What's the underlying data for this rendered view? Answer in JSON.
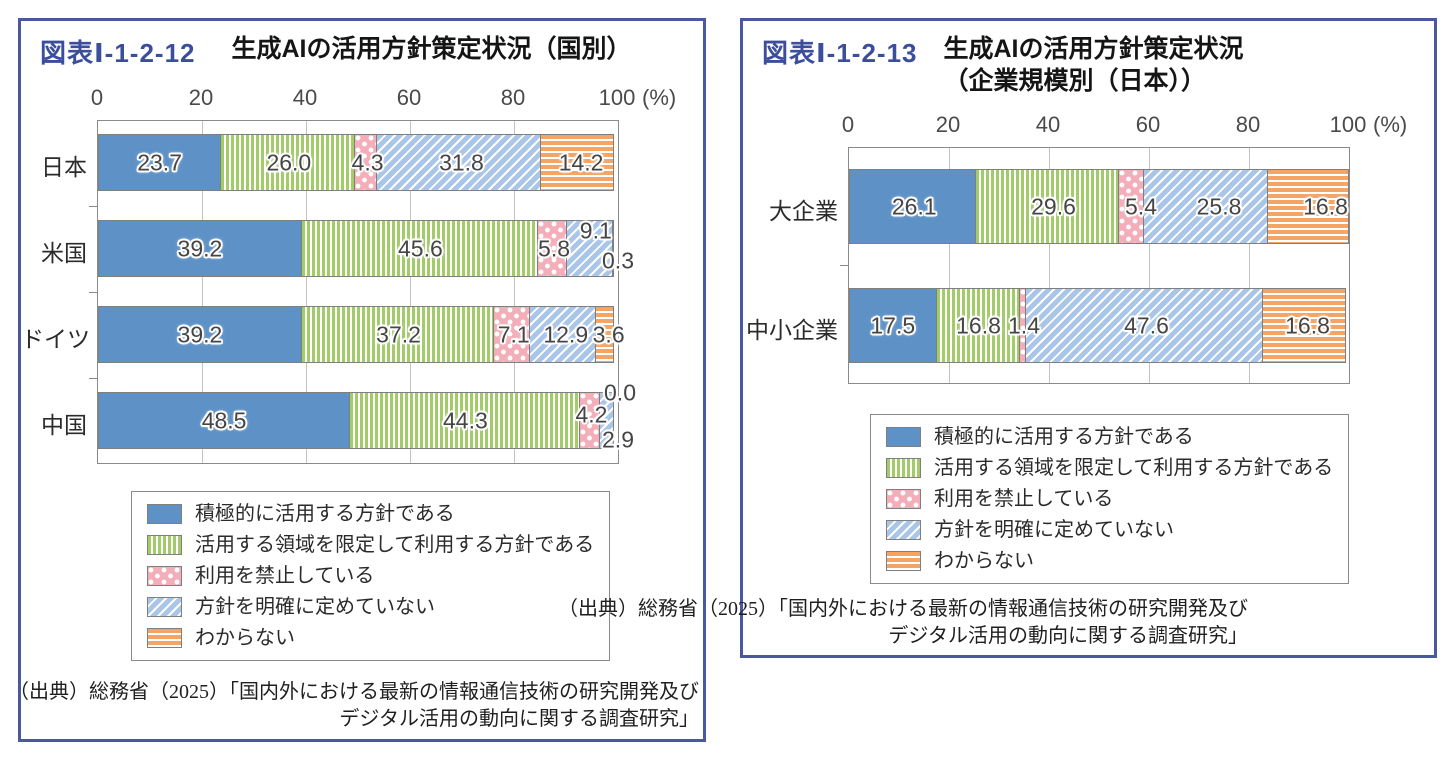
{
  "styles": {
    "panel_border_color": "#4a58a0",
    "figure_label_color": "#3b4e9c",
    "grid_color": "#c2c2c2",
    "bar_border_color": "#7f7f7f",
    "value_label_color": "#454545",
    "series_colors": {
      "solid": "#5e92c7",
      "vertical_stripes": "#a2cb6a",
      "dots": "#f4aeb9",
      "diagonal_stripes": "#a9c5e8",
      "horizontal_stripes": "#f4a465"
    }
  },
  "chart_data": [
    {
      "type": "bar",
      "stacked": true,
      "orientation": "horizontal",
      "figure_label": "図表Ⅰ-1-2-12",
      "title_lines": [
        "生成AIの活用方針策定状況（国別）"
      ],
      "categories": [
        "日本",
        "米国",
        "ドイツ",
        "中国"
      ],
      "series": [
        {
          "name": "積極的に活用する方針である",
          "pattern": "solid",
          "values": [
            23.7,
            39.2,
            39.2,
            48.5
          ],
          "value_labels": [
            "23.7",
            "39.2",
            "39.2",
            "48.5"
          ]
        },
        {
          "name": "活用する領域を限定して利用する方針である",
          "pattern": "vertical_stripes",
          "values": [
            26.0,
            45.6,
            37.2,
            44.3
          ],
          "value_labels": [
            "26.0",
            "45.6",
            "37.2",
            "44.3"
          ]
        },
        {
          "name": "利用を禁止している",
          "pattern": "dots",
          "values": [
            4.3,
            5.8,
            7.1,
            4.2
          ],
          "value_labels": [
            "4.3",
            "5.8",
            "7.1",
            "4.2"
          ]
        },
        {
          "name": "方針を明確に定めていない",
          "pattern": "diagonal_stripes",
          "values": [
            31.8,
            9.1,
            12.9,
            2.9
          ],
          "value_labels": [
            "31.8",
            "9.1",
            "12.9",
            "2.9"
          ]
        },
        {
          "name": "わからない",
          "pattern": "horizontal_stripes",
          "values": [
            14.2,
            0.3,
            3.6,
            0.0
          ],
          "value_labels": [
            "14.2",
            "0.3",
            "3.6",
            "0.0"
          ]
        }
      ],
      "xlim": [
        0,
        100
      ],
      "x_ticks": [
        "0",
        "20",
        "40",
        "60",
        "80",
        "100"
      ],
      "x_unit": "(%)",
      "grid": true,
      "legend_position": "below",
      "source_lines": [
        "（出典）総務省（2025）「国内外における最新の情報通信技術の研究開発及び",
        "デジタル活用の動向に関する調査研究」"
      ]
    },
    {
      "type": "bar",
      "stacked": true,
      "orientation": "horizontal",
      "figure_label": "図表Ⅰ-1-2-13",
      "title_lines": [
        "生成AIの活用方針策定状況",
        "（企業規模別（日本））"
      ],
      "categories": [
        "大企業",
        "中小企業"
      ],
      "series": [
        {
          "name": "積極的に活用する方針である",
          "pattern": "solid",
          "values": [
            26.1,
            17.5
          ],
          "value_labels": [
            "26.1",
            "17.5"
          ]
        },
        {
          "name": "活用する領域を限定して利用する方針である",
          "pattern": "vertical_stripes",
          "values": [
            29.6,
            16.8
          ],
          "value_labels": [
            "29.6",
            "16.8"
          ]
        },
        {
          "name": "利用を禁止している",
          "pattern": "dots",
          "values": [
            5.4,
            1.4
          ],
          "value_labels": [
            "5.4",
            "1.4"
          ]
        },
        {
          "name": "方針を明確に定めていない",
          "pattern": "diagonal_stripes",
          "values": [
            25.8,
            47.6
          ],
          "value_labels": [
            "25.8",
            "47.6"
          ]
        },
        {
          "name": "わからない",
          "pattern": "horizontal_stripes",
          "values": [
            16.8,
            16.8
          ],
          "value_labels": [
            "16.8",
            "16.8"
          ]
        }
      ],
      "xlim": [
        0,
        100
      ],
      "x_ticks": [
        "0",
        "20",
        "40",
        "60",
        "80",
        "100"
      ],
      "x_unit": "(%)",
      "grid": true,
      "legend_position": "below",
      "source_lines": [
        "（出典）総務省（2025）「国内外における最新の情報通信技術の研究開発及び",
        "デジタル活用の動向に関する調査研究」"
      ]
    }
  ]
}
